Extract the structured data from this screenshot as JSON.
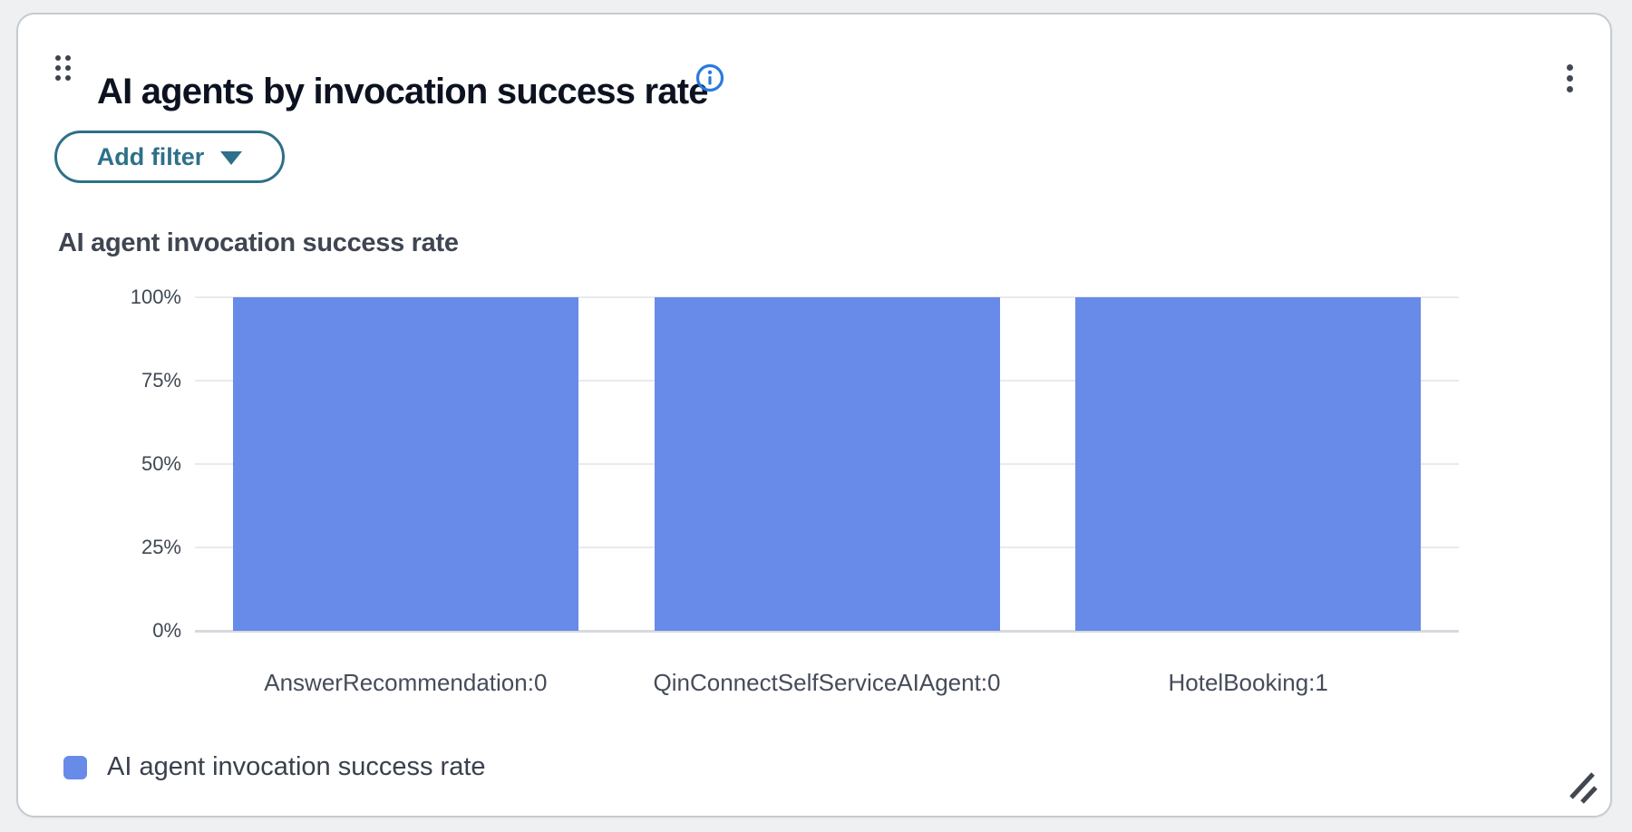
{
  "card": {
    "title": "AI agents by invocation success rate",
    "header_icons": {
      "drag": "drag-handle-icon",
      "info": "info-icon",
      "menu": "kebab-menu-icon"
    },
    "filter_button": {
      "label": "Add filter",
      "caret": "caret-down-icon"
    },
    "chart_title": "AI agent invocation success rate",
    "legend": [
      {
        "label": "AI agent invocation success rate",
        "color": "#688ae8"
      }
    ],
    "resize": "resize-handle-icon"
  },
  "chart_data": {
    "type": "bar",
    "title": "AI agent invocation success rate",
    "categories": [
      "AnswerRecommendation:0",
      "QinConnectSelfServiceAIAgent:0",
      "HotelBooking:1"
    ],
    "values": [
      100,
      100,
      100
    ],
    "unit": "%",
    "ylim": [
      0,
      100
    ],
    "yticks": [
      0,
      25,
      50,
      75,
      100
    ],
    "ytick_labels": [
      "0%",
      "25%",
      "50%",
      "75%",
      "100%"
    ],
    "grid": true,
    "legend_position": "bottom-left",
    "bar_color": "#688ae8",
    "xlabel": "",
    "ylabel": ""
  },
  "colors": {
    "accent_blue": "#2a7ade",
    "action_teal": "#2e7089",
    "series_blue": "#688ae8",
    "title_text": "#0c1220",
    "axis_text": "#3f4752",
    "gridline": "#e9eaed",
    "baseline": "#d7d9de",
    "card_border": "#c6cad1",
    "page_background": "#eef0f1"
  }
}
